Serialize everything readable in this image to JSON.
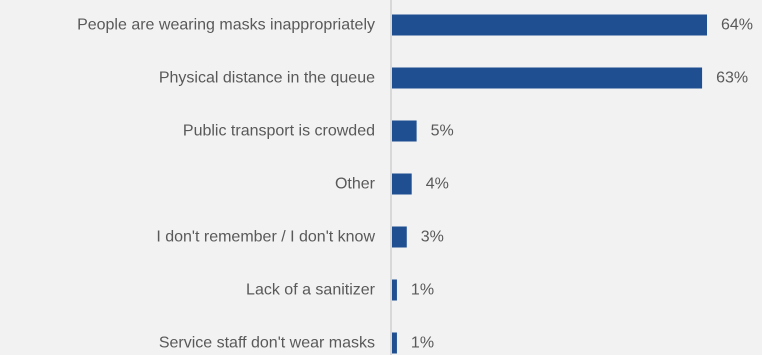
{
  "chart_data": {
    "type": "bar",
    "orientation": "horizontal",
    "title": "",
    "xlabel": "",
    "ylabel": "",
    "categories": [
      "People are wearing masks inappropriately",
      "Physical distance in the queue",
      "Public transport is crowded",
      "Other",
      "I don't remember / I don't know",
      "Lack of a sanitizer",
      "Service staff don't wear masks"
    ],
    "values": [
      64,
      63,
      5,
      4,
      3,
      1,
      1
    ],
    "value_labels": [
      "64%",
      "63%",
      "5%",
      "4%",
      "3%",
      "1%",
      "1%"
    ],
    "unit": "%",
    "xlim": [
      0,
      100
    ],
    "grid": false,
    "legend": "none",
    "colors": {
      "bar": "#1f4e91",
      "axis": "#bfbfbf",
      "text": "#595959",
      "background": "#f2f2f2"
    }
  }
}
